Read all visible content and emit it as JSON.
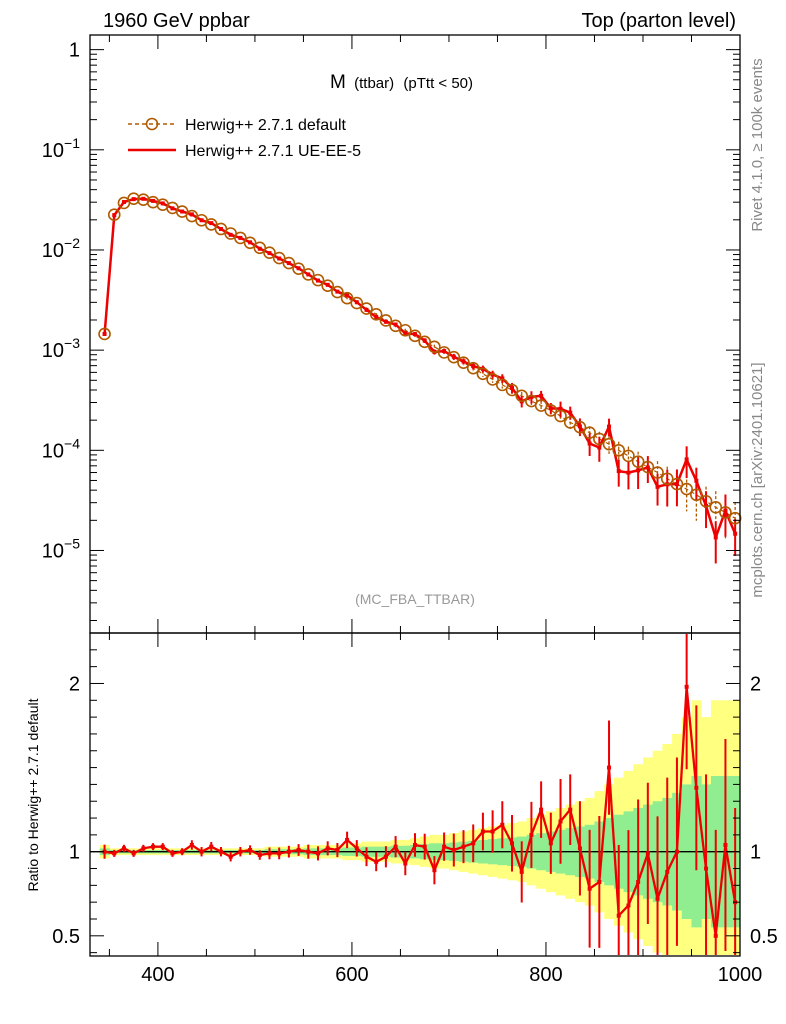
{
  "header": {
    "left": "1960 GeV ppbar",
    "right": "Top (parton level)"
  },
  "side_labels": {
    "rivet": "Rivet 4.1.0, ≥ 100k events",
    "mcplots": "mcplots.cern.ch [arXiv:2401.10621]"
  },
  "chart_data": {
    "type": "line",
    "title_main": "M",
    "title_sub": "(ttbar)",
    "title_cut": "(pTtt < 50)",
    "analysis": "(MC_FBA_TTBAR)",
    "xlim": [
      330,
      1000
    ],
    "ylim_log": [
      1.5e-06,
      1.4
    ],
    "ratio_ylim": [
      0.38,
      2.3
    ],
    "ratio_ylabel": "Ratio to Herwig++ 2.7.1 default",
    "x_ticks": [
      {
        "v": 400,
        "label": "400"
      },
      {
        "v": 600,
        "label": "600"
      },
      {
        "v": 800,
        "label": "800"
      },
      {
        "v": 1000,
        "label": "1000"
      }
    ],
    "y_ticks": [
      {
        "exp": 0,
        "base": "1",
        "sup": ""
      },
      {
        "exp": -1,
        "base": "10",
        "sup": "−1"
      },
      {
        "exp": -2,
        "base": "10",
        "sup": "−2"
      },
      {
        "exp": -3,
        "base": "10",
        "sup": "−3"
      },
      {
        "exp": -4,
        "base": "10",
        "sup": "−4"
      },
      {
        "exp": -5,
        "base": "10",
        "sup": "−5"
      }
    ],
    "ratio_ticks": [
      {
        "v": 0.5,
        "label": "0.5"
      },
      {
        "v": 1,
        "label": "1"
      },
      {
        "v": 2,
        "label": "2"
      }
    ],
    "legend": [
      {
        "name": "Herwig++ 2.7.1 default",
        "color": "#b05a00",
        "style": "dashed-circle"
      },
      {
        "name": "Herwig++ 2.7.1 UE-EE-5",
        "color": "#ee0000",
        "style": "solid"
      }
    ],
    "x": [
      345,
      355,
      365,
      375,
      385,
      395,
      405,
      415,
      425,
      435,
      445,
      455,
      465,
      475,
      485,
      495,
      505,
      515,
      525,
      535,
      545,
      555,
      565,
      575,
      585,
      595,
      605,
      615,
      625,
      635,
      645,
      655,
      665,
      675,
      685,
      695,
      705,
      715,
      725,
      735,
      745,
      755,
      765,
      775,
      785,
      795,
      805,
      815,
      825,
      835,
      845,
      855,
      865,
      875,
      885,
      895,
      905,
      915,
      925,
      935,
      945,
      955,
      965,
      975,
      985,
      995
    ],
    "series": [
      {
        "name": "Herwig++ 2.7.1 default",
        "values": [
          0.00145,
          0.0225,
          0.0295,
          0.0325,
          0.0318,
          0.03,
          0.0283,
          0.0263,
          0.0242,
          0.0218,
          0.0198,
          0.018,
          0.0162,
          0.0146,
          0.0132,
          0.0118,
          0.0105,
          0.0094,
          0.0083,
          0.0074,
          0.0065,
          0.0057,
          0.005,
          0.0044,
          0.0038,
          0.0033,
          0.00295,
          0.0026,
          0.00228,
          0.00198,
          0.00175,
          0.00158,
          0.00139,
          0.00121,
          0.00108,
          0.00095,
          0.00085,
          0.00075,
          0.00066,
          0.00058,
          0.00051,
          0.00045,
          0.0004,
          0.00035,
          0.00031,
          0.00028,
          0.00025,
          0.00022,
          0.00019,
          0.00017,
          0.00015,
          0.00013,
          0.000115,
          0.0001,
          8.8e-05,
          7.7e-05,
          6.8e-05,
          6e-05,
          5.2e-05,
          4.6e-05,
          4.1e-05,
          3.6e-05,
          3.1e-05,
          2.7e-05,
          2.4e-05,
          2.1e-05
        ],
        "rel_err": [
          0.02,
          0.01,
          0.01,
          0.01,
          0.01,
          0.01,
          0.01,
          0.01,
          0.01,
          0.01,
          0.01,
          0.01,
          0.01,
          0.01,
          0.01,
          0.01,
          0.01,
          0.015,
          0.015,
          0.015,
          0.015,
          0.02,
          0.02,
          0.02,
          0.02,
          0.025,
          0.025,
          0.03,
          0.03,
          0.03,
          0.035,
          0.035,
          0.04,
          0.045,
          0.05,
          0.05,
          0.055,
          0.06,
          0.065,
          0.07,
          0.075,
          0.08,
          0.085,
          0.09,
          0.1,
          0.11,
          0.12,
          0.13,
          0.14,
          0.15,
          0.16,
          0.18,
          0.2,
          0.22,
          0.24,
          0.26,
          0.28,
          0.3,
          0.32,
          0.35,
          0.4,
          0.45,
          0.4,
          0.45,
          0.45,
          0.45
        ]
      },
      {
        "name": "Herwig++ 2.7.1 UE-EE-5",
        "ratio": [
          1.0,
          0.99,
          1.02,
          0.99,
          1.02,
          1.03,
          1.03,
          0.99,
          1.0,
          1.04,
          1.0,
          1.03,
          1.0,
          0.97,
          1.0,
          1.01,
          0.98,
          0.99,
          0.99,
          1.0,
          1.01,
          1.0,
          0.99,
          1.02,
          1.01,
          1.07,
          1.02,
          0.97,
          0.94,
          0.97,
          1.03,
          0.93,
          1.04,
          1.03,
          0.89,
          1.03,
          1.01,
          1.03,
          1.05,
          1.12,
          1.12,
          1.16,
          1.05,
          0.88,
          1.1,
          1.25,
          1.05,
          1.18,
          1.25,
          1.02,
          0.78,
          0.82,
          1.5,
          0.62,
          0.68,
          0.82,
          0.99,
          0.72,
          0.88,
          1.0,
          1.98,
          1.38,
          0.9,
          0.5,
          1.04,
          0.7
        ],
        "rel_err": [
          0.03,
          0.015,
          0.015,
          0.015,
          0.015,
          0.015,
          0.015,
          0.015,
          0.015,
          0.02,
          0.02,
          0.02,
          0.02,
          0.02,
          0.02,
          0.02,
          0.02,
          0.025,
          0.025,
          0.025,
          0.025,
          0.03,
          0.03,
          0.03,
          0.03,
          0.035,
          0.035,
          0.04,
          0.04,
          0.045,
          0.045,
          0.05,
          0.05,
          0.055,
          0.06,
          0.06,
          0.07,
          0.07,
          0.08,
          0.08,
          0.09,
          0.1,
          0.12,
          0.13,
          0.14,
          0.12,
          0.13,
          0.18,
          0.15,
          0.2,
          0.25,
          0.28,
          0.2,
          0.3,
          0.32,
          0.35,
          0.3,
          0.35,
          0.4,
          0.4,
          0.35,
          0.35,
          0.4,
          0.45,
          0.45,
          0.4
        ]
      }
    ]
  }
}
